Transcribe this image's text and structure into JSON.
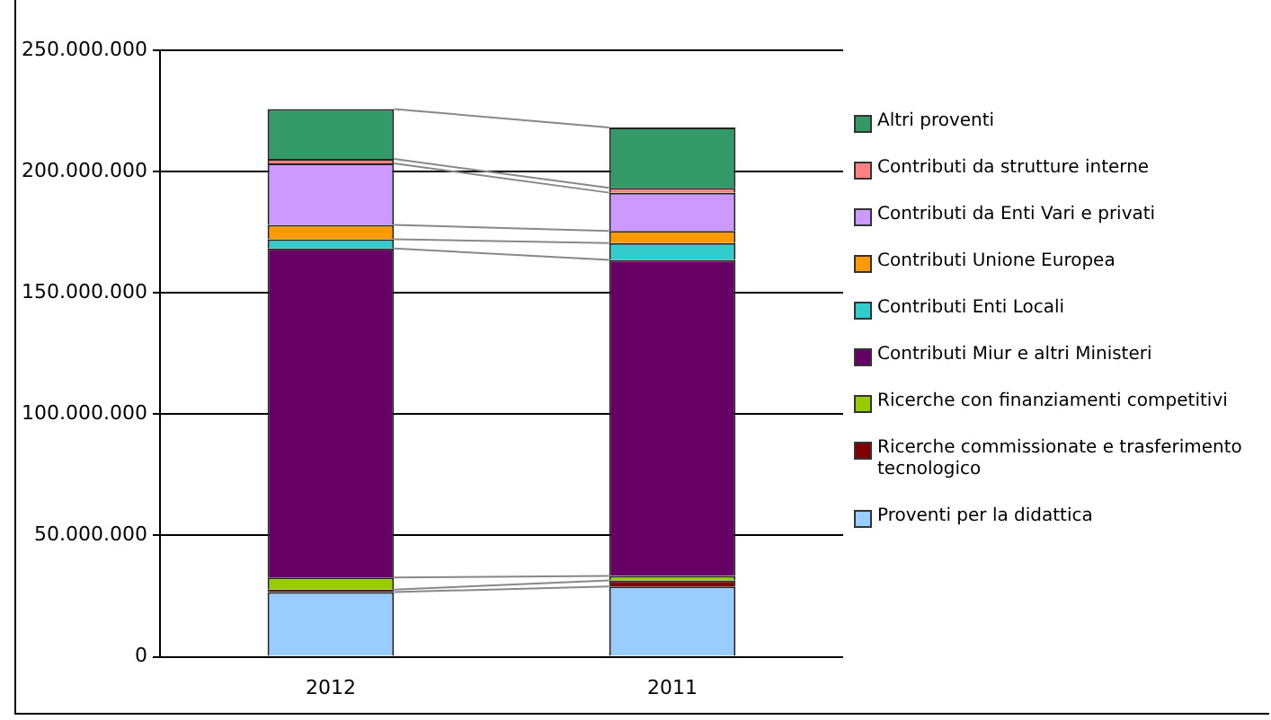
{
  "chart_data": {
    "type": "bar",
    "stacked": true,
    "categories": [
      "2012",
      "2011"
    ],
    "ylim": [
      0,
      250000000
    ],
    "yticks": [
      0,
      {
        "value": 50000000,
        "label": "50.000.000"
      },
      {
        "value": 100000000,
        "label": "100.000.000"
      },
      {
        "value": 150000000,
        "label": "150.000.000"
      },
      {
        "value": 200000000,
        "label": "200.000.000"
      },
      {
        "value": 250000000,
        "label": "250.000.000"
      }
    ],
    "grid": "y",
    "legend": "right",
    "series": [
      {
        "name": "Proventi per la didattica",
        "color": "#99ccff",
        "values": [
          26700000,
          29000000
        ]
      },
      {
        "name": "Ricerche commissionate e trasferimento tecnologico",
        "color": "#800000",
        "values": [
          1000000,
          2500000
        ]
      },
      {
        "name": "Ricerche con finanziamenti competitivi",
        "color": "#99cc00",
        "values": [
          5000000,
          1800000
        ]
      },
      {
        "name": "Contributi Miur e altri Ministeri",
        "color": "#660066",
        "values": [
          135600000,
          130300000
        ]
      },
      {
        "name": "Contributi Enti Locali",
        "color": "#33cccc",
        "values": [
          3800000,
          6900000
        ]
      },
      {
        "name": "Contributi Unione Europea",
        "color": "#ff9900",
        "values": [
          5900000,
          5000000
        ]
      },
      {
        "name": "Contributi da Enti Vari e privati",
        "color": "#cc99ff",
        "values": [
          25400000,
          15800000
        ]
      },
      {
        "name": "Contributi da strutture interne",
        "color": "#ff8080",
        "values": [
          1800000,
          2000000
        ]
      },
      {
        "name": "Altri proventi",
        "color": "#339966",
        "values": [
          20600000,
          24900000
        ]
      }
    ]
  }
}
